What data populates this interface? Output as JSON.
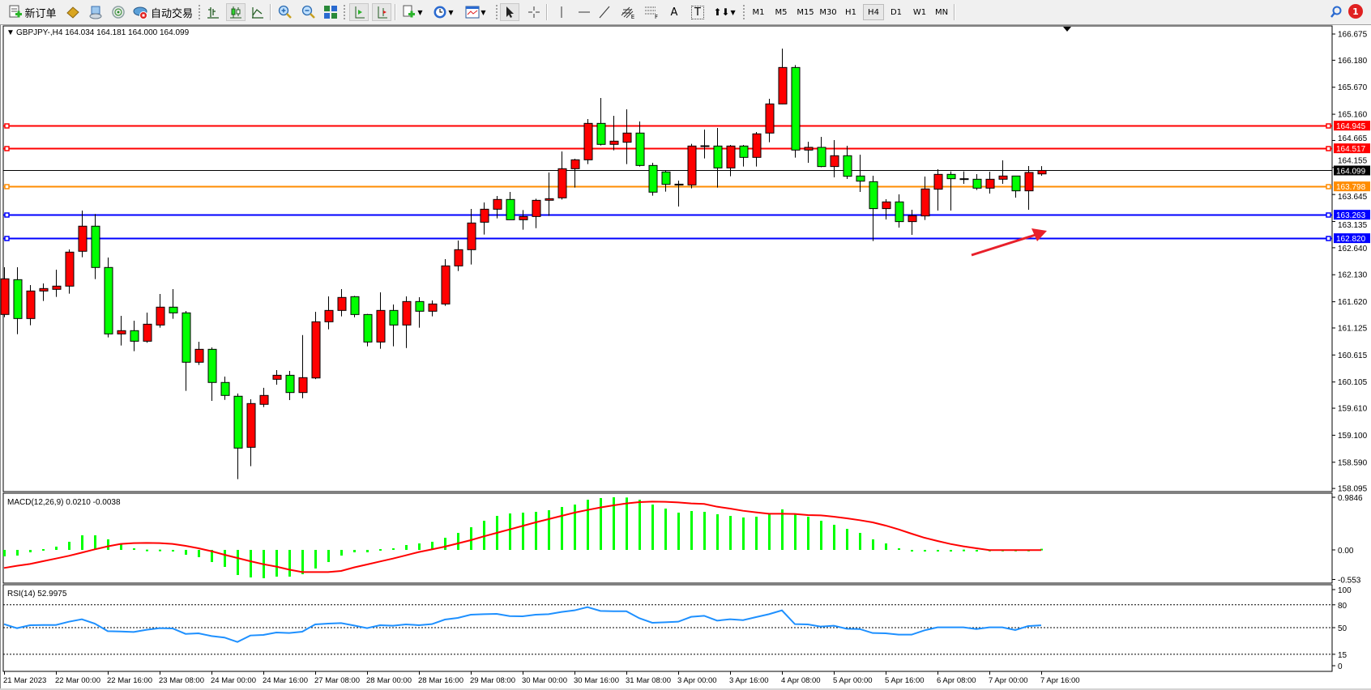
{
  "toolbar": {
    "new_order_label": "新订单",
    "autotrading_label": "自动交易",
    "timeframes": [
      "M1",
      "M5",
      "M15",
      "M30",
      "H1",
      "H4",
      "D1",
      "W1",
      "MN"
    ],
    "active_timeframe": "H4",
    "fib_channel_sub": "E",
    "fib_sub": "F",
    "text_tool": "A",
    "label_tool": "T",
    "notification_count": "1"
  },
  "chart_data": [
    {
      "type": "candlestick",
      "symbol_label": "GBPJPY-,H4",
      "ohlc_label": "164.034 164.181 164.000 164.099",
      "ylim": [
        158.095,
        166.675
      ],
      "y_ticks": [
        "166.675",
        "166.180",
        "165.670",
        "165.160",
        "164.665",
        "164.155",
        "163.645",
        "163.135",
        "162.640",
        "162.130",
        "161.620",
        "161.125",
        "160.615",
        "160.105",
        "159.610",
        "159.100",
        "158.590",
        "158.095"
      ],
      "x_tick_labels": [
        "21 Mar 2023",
        "22 Mar 00:00",
        "22 Mar 16:00",
        "23 Mar 08:00",
        "24 Mar 00:00",
        "24 Mar 16:00",
        "27 Mar 08:00",
        "28 Mar 00:00",
        "28 Mar 16:00",
        "29 Mar 08:00",
        "30 Mar 00:00",
        "30 Mar 16:00",
        "31 Mar 08:00",
        "3 Apr 00:00",
        "3 Apr 16:00",
        "4 Apr 08:00",
        "5 Apr 00:00",
        "5 Apr 16:00",
        "6 Apr 08:00",
        "7 Apr 00:00",
        "7 Apr 16:00"
      ],
      "bars_per_x_label": 4,
      "colors": {
        "bull": "#ff0000",
        "bear": "#00ff00",
        "outline": "#000000",
        "annotation_arrow": "#e8202a"
      },
      "bid": {
        "price": 164.099,
        "label": "164.099",
        "color": "#000000"
      },
      "hlines": [
        {
          "price": 164.945,
          "label": "164.945",
          "color": "#ff0000"
        },
        {
          "price": 164.517,
          "label": "164.517",
          "color": "#ff0000"
        },
        {
          "price": 163.798,
          "label": "163.798",
          "color": "#ff8c00"
        },
        {
          "price": 163.263,
          "label": "163.263",
          "color": "#0000ff"
        },
        {
          "price": 162.82,
          "label": "162.820",
          "color": "#0000ff"
        }
      ],
      "candles_ohlc": [
        [
          161.38,
          162.272,
          161.33,
          162.053
        ],
        [
          162.037,
          162.272,
          161.008,
          161.303
        ],
        [
          161.303,
          161.935,
          161.176,
          161.823
        ],
        [
          161.823,
          161.966,
          161.635,
          161.869
        ],
        [
          161.854,
          162.226,
          161.711,
          161.915
        ],
        [
          161.915,
          162.608,
          161.772,
          162.557
        ],
        [
          162.573,
          163.342,
          162.46,
          163.047
        ],
        [
          163.047,
          163.276,
          162.048,
          162.267
        ],
        [
          162.267,
          162.455,
          160.947,
          161.013
        ],
        [
          161.013,
          161.354,
          160.794,
          161.074
        ],
        [
          161.074,
          161.263,
          160.687,
          160.875
        ],
        [
          160.875,
          161.416,
          160.845,
          161.196
        ],
        [
          161.181,
          161.767,
          161.13,
          161.518
        ],
        [
          161.518,
          161.858,
          161.298,
          161.41
        ],
        [
          161.41,
          161.446,
          159.937,
          160.478
        ],
        [
          160.478,
          160.865,
          160.427,
          160.722
        ],
        [
          160.722,
          160.758,
          159.749,
          160.096
        ],
        [
          160.096,
          160.208,
          159.768,
          159.851
        ],
        [
          159.836,
          159.887,
          158.271,
          158.857
        ],
        [
          158.872,
          159.779,
          158.516,
          159.698
        ],
        [
          159.683,
          159.994,
          159.632,
          159.851
        ],
        [
          160.156,
          160.329,
          160.054,
          160.232
        ],
        [
          160.232,
          160.314,
          159.763,
          159.906
        ],
        [
          159.906,
          160.99,
          159.799,
          160.187
        ],
        [
          160.181,
          161.43,
          160.16,
          161.242
        ],
        [
          161.242,
          161.721,
          161.099,
          161.456
        ],
        [
          161.456,
          161.859,
          161.344,
          161.701
        ],
        [
          161.716,
          161.731,
          161.328,
          161.379
        ],
        [
          161.379,
          161.39,
          160.778,
          160.86
        ],
        [
          160.86,
          161.797,
          160.732,
          161.456
        ],
        [
          161.456,
          161.568,
          160.778,
          161.181
        ],
        [
          161.181,
          161.721,
          160.747,
          161.624
        ],
        [
          161.624,
          161.706,
          161.13,
          161.441
        ],
        [
          161.441,
          161.645,
          161.344,
          161.578
        ],
        [
          161.578,
          162.424,
          161.543,
          162.297
        ],
        [
          162.297,
          162.776,
          162.2,
          162.603
        ],
        [
          162.603,
          163.372,
          162.322,
          163.107
        ],
        [
          163.122,
          163.495,
          162.888,
          163.367
        ],
        [
          163.367,
          163.617,
          163.194,
          163.551
        ],
        [
          163.551,
          163.693,
          163.168,
          163.168
        ],
        [
          163.168,
          163.352,
          162.98,
          163.229
        ],
        [
          163.229,
          163.566,
          163.01,
          163.535
        ],
        [
          163.536,
          164.061,
          163.24,
          163.566
        ],
        [
          163.582,
          164.458,
          163.55,
          164.132
        ],
        [
          164.132,
          164.32,
          163.775,
          164.3
        ],
        [
          164.3,
          165.07,
          164.219,
          164.988
        ],
        [
          164.988,
          165.467,
          164.57,
          164.591
        ],
        [
          164.591,
          165.131,
          164.479,
          164.652
        ],
        [
          164.632,
          165.253,
          164.219,
          164.805
        ],
        [
          164.805,
          165.024,
          164.173,
          164.193
        ],
        [
          164.193,
          164.244,
          163.623,
          163.689
        ],
        [
          164.071,
          164.097,
          163.699,
          163.837
        ],
        [
          163.837,
          163.908,
          163.419,
          163.84
        ],
        [
          163.826,
          164.601,
          163.76,
          164.56
        ],
        [
          164.56,
          164.871,
          164.326,
          164.565
        ],
        [
          164.56,
          164.902,
          163.775,
          164.147
        ],
        [
          164.147,
          164.58,
          163.99,
          164.56
        ],
        [
          164.56,
          164.58,
          164.173,
          164.346
        ],
        [
          164.346,
          164.825,
          164.173,
          164.79
        ],
        [
          164.805,
          165.452,
          164.632,
          165.355
        ],
        [
          165.355,
          166.4,
          165.35,
          166.043
        ],
        [
          166.043,
          166.089,
          164.341,
          164.484
        ],
        [
          164.484,
          164.642,
          164.244,
          164.535
        ],
        [
          164.535,
          164.733,
          164.16,
          164.173
        ],
        [
          164.173,
          164.672,
          163.969,
          164.377
        ],
        [
          164.377,
          164.565,
          163.938,
          163.989
        ],
        [
          163.994,
          164.397,
          163.694,
          163.897
        ],
        [
          163.887,
          163.999,
          162.766,
          163.378
        ],
        [
          163.378,
          163.556,
          163.174,
          163.505
        ],
        [
          163.505,
          163.648,
          163.021,
          163.133
        ],
        [
          163.133,
          163.357,
          162.883,
          163.245
        ],
        [
          163.24,
          163.984,
          163.163,
          163.75
        ],
        [
          163.745,
          164.122,
          163.342,
          164.025
        ],
        [
          164.025,
          164.081,
          163.342,
          163.943
        ],
        [
          163.943,
          164.081,
          163.846,
          163.94
        ],
        [
          163.933,
          164.03,
          163.73,
          163.765
        ],
        [
          163.765,
          164.076,
          163.663,
          163.933
        ],
        [
          163.933,
          164.29,
          163.846,
          163.994
        ],
        [
          163.994,
          164.0,
          163.587,
          163.714
        ],
        [
          163.714,
          164.183,
          163.357,
          164.061
        ],
        [
          164.034,
          164.181,
          164.0,
          164.099
        ]
      ]
    },
    {
      "type": "bar+line",
      "title": "MACD(12,26,9) 0.0210 -0.0038",
      "ylim": [
        -0.553,
        0.9846
      ],
      "y_ticks": [
        "0.9846",
        "0.00",
        "-0.553"
      ],
      "colors": {
        "histogram": "#00ff00",
        "signal": "#ff0000"
      },
      "histogram": [
        -0.121,
        -0.106,
        -0.045,
        0.015,
        0.061,
        0.152,
        0.273,
        0.273,
        0.197,
        0.106,
        0.03,
        0.005,
        0.005,
        -0.015,
        -0.091,
        -0.136,
        -0.227,
        -0.318,
        -0.47,
        -0.515,
        -0.53,
        -0.5,
        -0.5,
        -0.455,
        -0.348,
        -0.227,
        -0.106,
        -0.045,
        -0.045,
        0.015,
        0.03,
        0.091,
        0.121,
        0.152,
        0.227,
        0.318,
        0.424,
        0.545,
        0.636,
        0.682,
        0.697,
        0.712,
        0.742,
        0.803,
        0.848,
        0.939,
        0.97,
        0.985,
        0.98,
        0.939,
        0.848,
        0.773,
        0.697,
        0.727,
        0.712,
        0.667,
        0.636,
        0.606,
        0.621,
        0.667,
        0.758,
        0.682,
        0.621,
        0.545,
        0.47,
        0.394,
        0.318,
        0.197,
        0.121,
        0.03,
        -0.03,
        -0.03,
        -0.015,
        -0.015,
        0.005,
        -0.015,
        0.003,
        0.003,
        0.003,
        0.003,
        0.021
      ],
      "signal": [
        -0.338,
        -0.298,
        -0.263,
        -0.212,
        -0.162,
        -0.111,
        -0.051,
        0.01,
        0.066,
        0.111,
        0.126,
        0.131,
        0.126,
        0.111,
        0.076,
        0.03,
        -0.025,
        -0.091,
        -0.152,
        -0.212,
        -0.268,
        -0.313,
        -0.369,
        -0.414,
        -0.414,
        -0.414,
        -0.394,
        -0.328,
        -0.273,
        -0.217,
        -0.162,
        -0.101,
        -0.04,
        0.01,
        0.061,
        0.121,
        0.182,
        0.253,
        0.318,
        0.384,
        0.449,
        0.515,
        0.576,
        0.636,
        0.697,
        0.747,
        0.793,
        0.833,
        0.869,
        0.894,
        0.904,
        0.899,
        0.889,
        0.869,
        0.859,
        0.808,
        0.773,
        0.732,
        0.702,
        0.677,
        0.677,
        0.672,
        0.652,
        0.646,
        0.621,
        0.591,
        0.556,
        0.515,
        0.455,
        0.384,
        0.303,
        0.227,
        0.167,
        0.111,
        0.066,
        0.03,
        -0.004,
        -0.004,
        -0.004,
        -0.004,
        -0.0038
      ]
    },
    {
      "type": "line",
      "title": "RSI(14) 52.9975",
      "ylim": [
        0,
        100
      ],
      "y_ticks": [
        "100",
        "80",
        "50",
        "15",
        "0"
      ],
      "levels": [
        80,
        50,
        15
      ],
      "colors": {
        "line": "#1e90ff",
        "levels": "#000000"
      },
      "values": [
        54.6,
        49.3,
        53.2,
        53.5,
        53.5,
        57.8,
        61.0,
        55.3,
        45.4,
        45.0,
        44.3,
        47.2,
        49.3,
        49.0,
        41.8,
        42.5,
        39.0,
        37.0,
        31.2,
        39.7,
        40.4,
        43.6,
        42.9,
        44.7,
        54.3,
        55.3,
        56.0,
        52.8,
        49.3,
        53.2,
        52.5,
        54.3,
        53.2,
        54.6,
        60.6,
        62.8,
        67.0,
        67.7,
        68.1,
        65.2,
        64.9,
        67.0,
        67.7,
        70.6,
        72.7,
        77.0,
        72.0,
        71.6,
        71.6,
        62.4,
        56.4,
        57.1,
        57.8,
        64.2,
        65.6,
        59.2,
        61.0,
        59.9,
        63.8,
        67.7,
        72.7,
        54.6,
        54.3,
        51.4,
        52.5,
        48.6,
        48.2,
        42.9,
        42.5,
        40.8,
        40.8,
        46.5,
        50.4,
        50.4,
        50.4,
        48.2,
        50.4,
        50.4,
        46.8,
        52.1,
        53.0
      ]
    }
  ]
}
